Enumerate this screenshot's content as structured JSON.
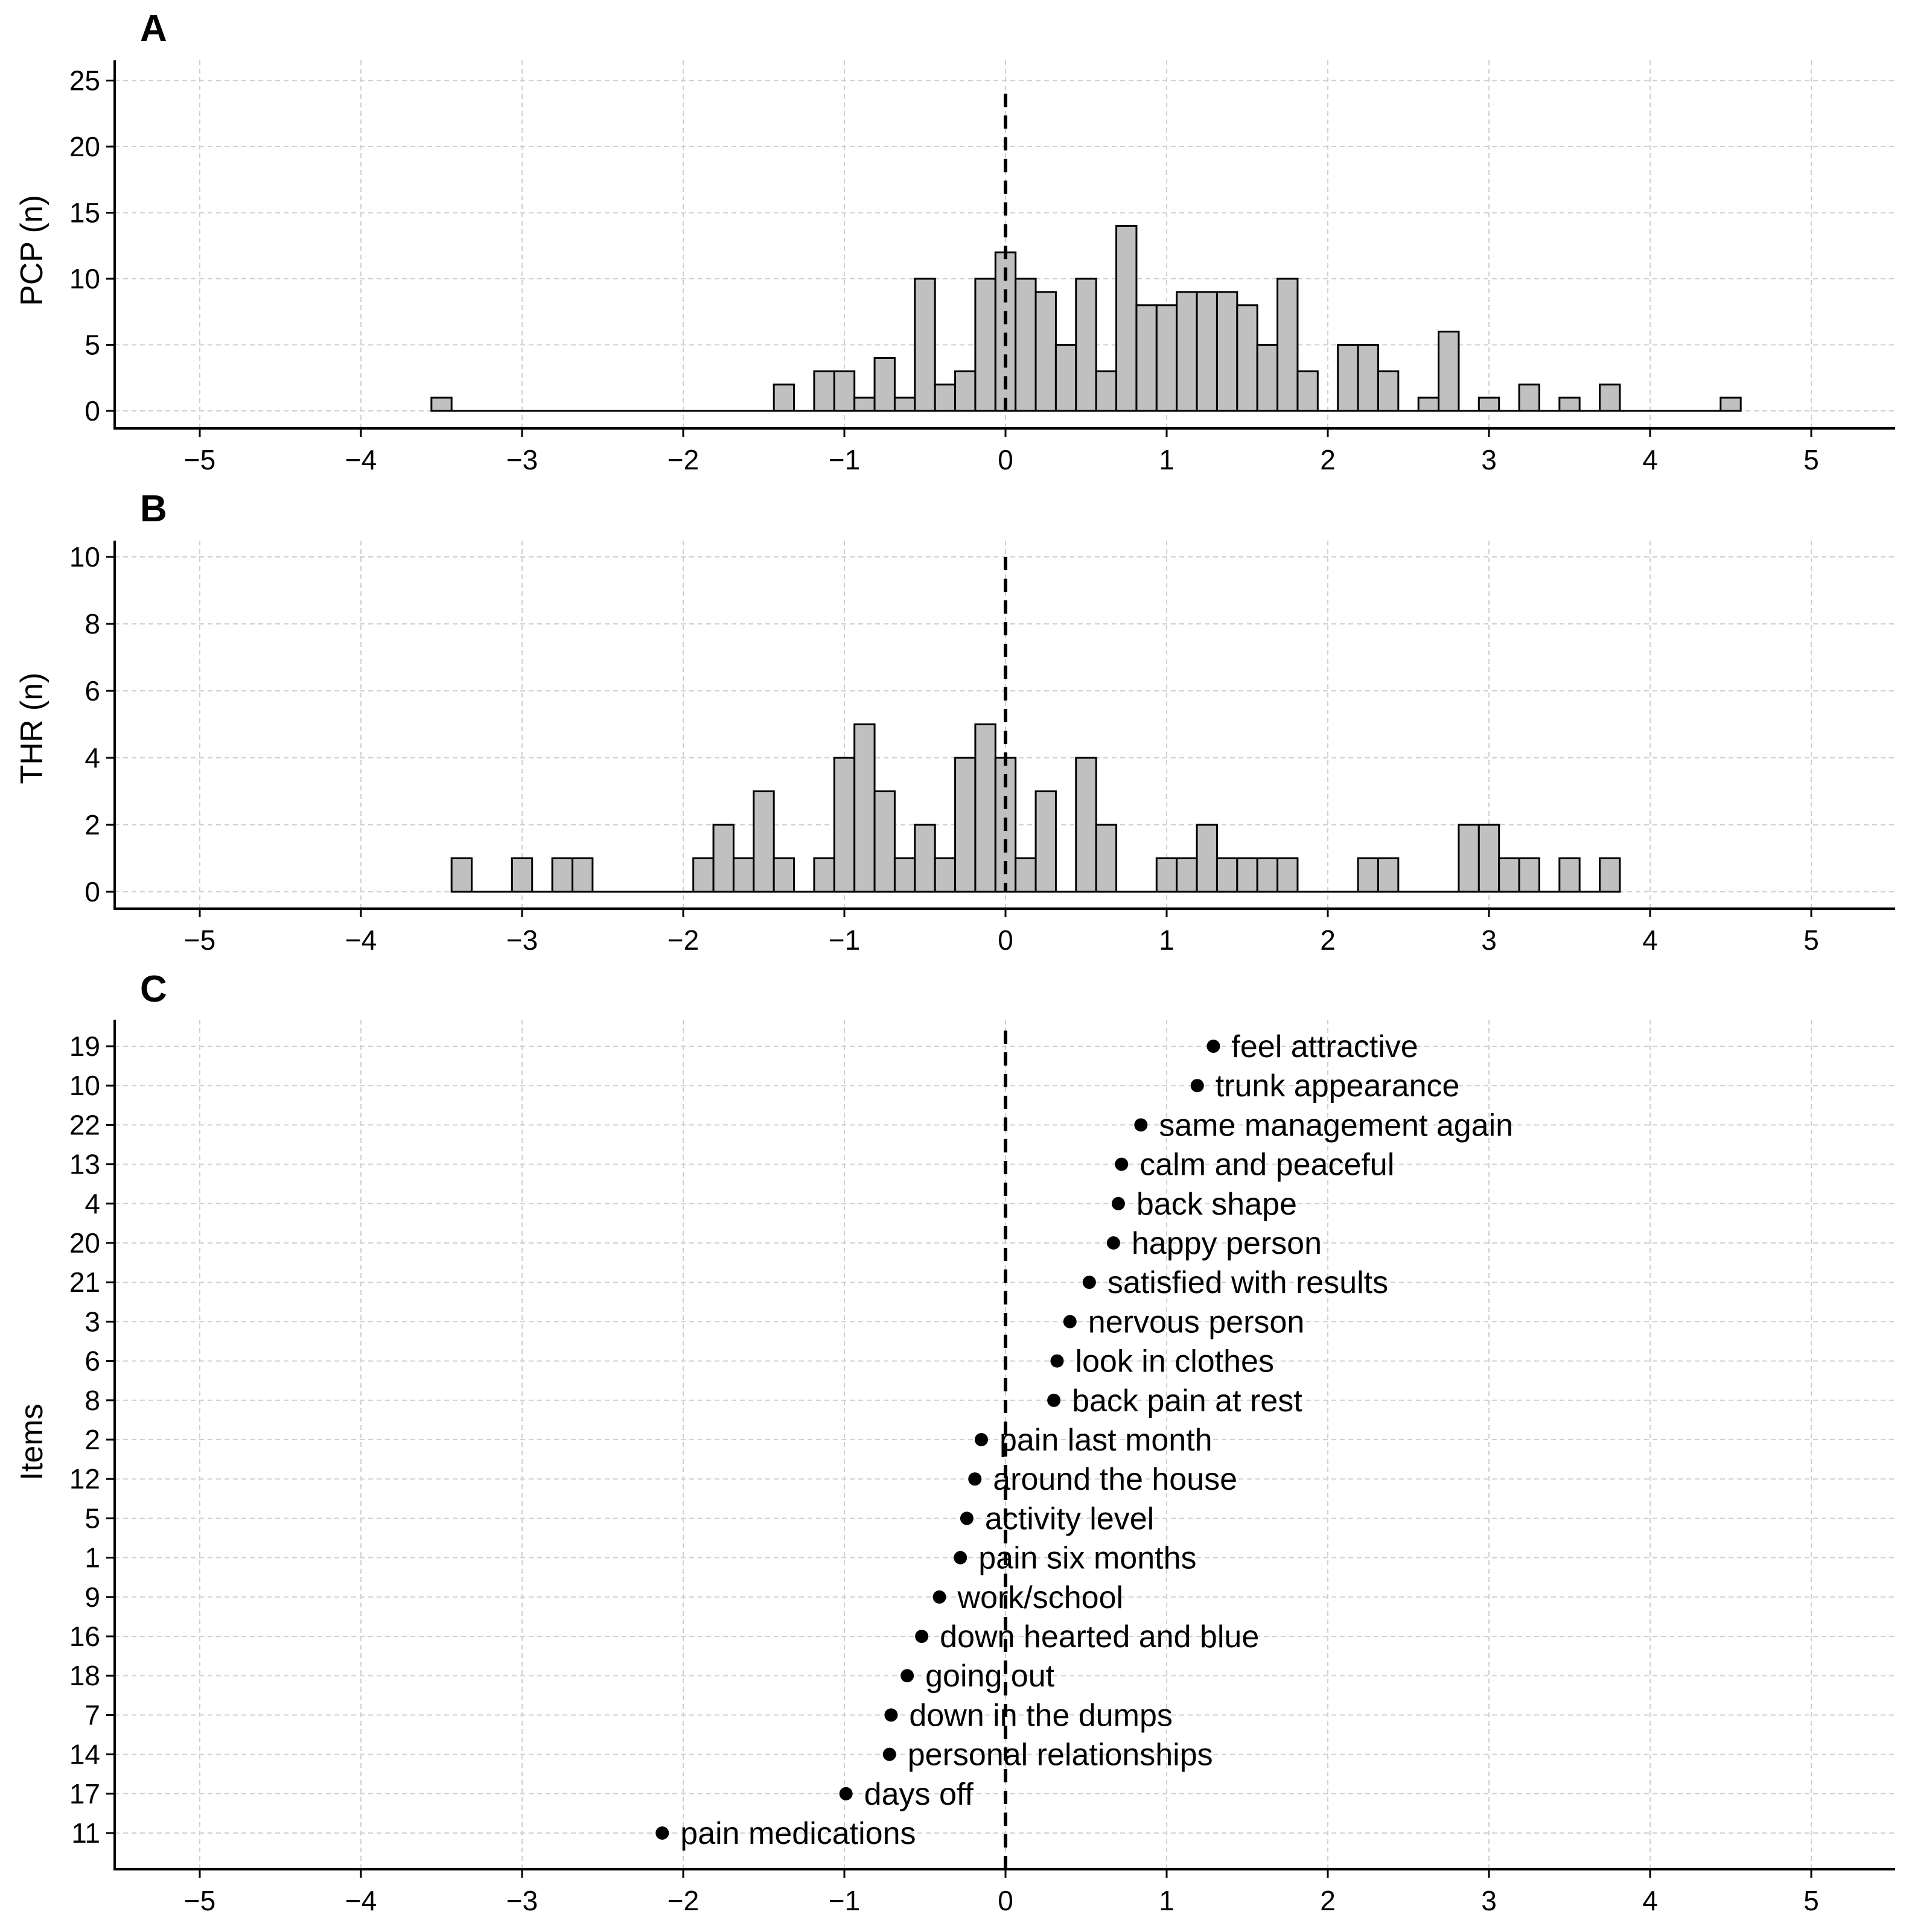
{
  "chart_data": [
    {
      "type": "bar",
      "panel": "A",
      "title": "",
      "ylabel": "PCP (n)",
      "xlabel": "",
      "xlim": [
        -5.5,
        5.5
      ],
      "ylim": [
        -2.5,
        26
      ],
      "xticks": [
        -5,
        -4,
        -3,
        -2,
        -1,
        0,
        1,
        2,
        3,
        4,
        5
      ],
      "xtick_labels": [
        "−5",
        "−4",
        "−3",
        "−2",
        "−1",
        "0",
        "1",
        "2",
        "3",
        "4",
        "5"
      ],
      "yticks": [
        0,
        5,
        10,
        15,
        20,
        25
      ],
      "ytick_labels": [
        "0",
        "5",
        "10",
        "15",
        "20",
        "25"
      ],
      "grid": true,
      "reference_line_x": 0,
      "reference_line_top": 24,
      "bin_width": 0.125,
      "bins": [
        {
          "x": -3.5,
          "count": 1
        },
        {
          "x": -1.375,
          "count": 2
        },
        {
          "x": -1.125,
          "count": 3
        },
        {
          "x": -1.0,
          "count": 3
        },
        {
          "x": -0.875,
          "count": 1
        },
        {
          "x": -0.75,
          "count": 4
        },
        {
          "x": -0.625,
          "count": 1
        },
        {
          "x": -0.5,
          "count": 10
        },
        {
          "x": -0.375,
          "count": 2
        },
        {
          "x": -0.25,
          "count": 3
        },
        {
          "x": -0.125,
          "count": 10
        },
        {
          "x": 0.0,
          "count": 12
        },
        {
          "x": 0.125,
          "count": 10
        },
        {
          "x": 0.25,
          "count": 9
        },
        {
          "x": 0.375,
          "count": 5
        },
        {
          "x": 0.5,
          "count": 10
        },
        {
          "x": 0.625,
          "count": 3
        },
        {
          "x": 0.75,
          "count": 14
        },
        {
          "x": 0.875,
          "count": 8
        },
        {
          "x": 1.0,
          "count": 8
        },
        {
          "x": 1.125,
          "count": 9
        },
        {
          "x": 1.25,
          "count": 9
        },
        {
          "x": 1.375,
          "count": 9
        },
        {
          "x": 1.5,
          "count": 8
        },
        {
          "x": 1.625,
          "count": 5
        },
        {
          "x": 1.75,
          "count": 10
        },
        {
          "x": 1.875,
          "count": 3
        },
        {
          "x": 2.125,
          "count": 5
        },
        {
          "x": 2.25,
          "count": 5
        },
        {
          "x": 2.375,
          "count": 3
        },
        {
          "x": 2.625,
          "count": 1
        },
        {
          "x": 2.75,
          "count": 6
        },
        {
          "x": 3.0,
          "count": 1
        },
        {
          "x": 3.25,
          "count": 2
        },
        {
          "x": 3.5,
          "count": 1
        },
        {
          "x": 3.75,
          "count": 2
        },
        {
          "x": 4.5,
          "count": 1
        }
      ]
    },
    {
      "type": "bar",
      "panel": "B",
      "title": "",
      "ylabel": "THR (n)",
      "xlabel": "",
      "xlim": [
        -5.5,
        5.5
      ],
      "ylim": [
        -1,
        10.5
      ],
      "xticks": [
        -5,
        -4,
        -3,
        -2,
        -1,
        0,
        1,
        2,
        3,
        4,
        5
      ],
      "xtick_labels": [
        "−5",
        "−4",
        "−3",
        "−2",
        "−1",
        "0",
        "1",
        "2",
        "3",
        "4",
        "5"
      ],
      "yticks": [
        0,
        2,
        4,
        6,
        8,
        10
      ],
      "ytick_labels": [
        "0",
        "2",
        "4",
        "6",
        "8",
        "10"
      ],
      "grid": true,
      "reference_line_x": 0,
      "reference_line_top": 10,
      "bin_width": 0.125,
      "bins": [
        {
          "x": -3.375,
          "count": 1
        },
        {
          "x": -3.0,
          "count": 1
        },
        {
          "x": -2.75,
          "count": 1
        },
        {
          "x": -2.625,
          "count": 1
        },
        {
          "x": -1.875,
          "count": 1
        },
        {
          "x": -1.75,
          "count": 2
        },
        {
          "x": -1.625,
          "count": 1
        },
        {
          "x": -1.5,
          "count": 3
        },
        {
          "x": -1.375,
          "count": 1
        },
        {
          "x": -1.125,
          "count": 1
        },
        {
          "x": -1.0,
          "count": 4
        },
        {
          "x": -0.875,
          "count": 5
        },
        {
          "x": -0.75,
          "count": 3
        },
        {
          "x": -0.625,
          "count": 1
        },
        {
          "x": -0.5,
          "count": 2
        },
        {
          "x": -0.375,
          "count": 1
        },
        {
          "x": -0.25,
          "count": 4
        },
        {
          "x": -0.125,
          "count": 5
        },
        {
          "x": 0.0,
          "count": 4
        },
        {
          "x": 0.125,
          "count": 1
        },
        {
          "x": 0.25,
          "count": 3
        },
        {
          "x": 0.375,
          "count": 0
        },
        {
          "x": 0.5,
          "count": 4
        },
        {
          "x": 0.625,
          "count": 2
        },
        {
          "x": 1.0,
          "count": 1
        },
        {
          "x": 1.125,
          "count": 1
        },
        {
          "x": 1.25,
          "count": 2
        },
        {
          "x": 1.375,
          "count": 1
        },
        {
          "x": 1.5,
          "count": 1
        },
        {
          "x": 1.625,
          "count": 1
        },
        {
          "x": 1.75,
          "count": 1
        },
        {
          "x": 2.25,
          "count": 1
        },
        {
          "x": 2.375,
          "count": 1
        },
        {
          "x": 2.875,
          "count": 2
        },
        {
          "x": 3.0,
          "count": 2
        },
        {
          "x": 3.125,
          "count": 1
        },
        {
          "x": 3.25,
          "count": 1
        },
        {
          "x": 3.5,
          "count": 1
        },
        {
          "x": 3.75,
          "count": 1
        }
      ]
    },
    {
      "type": "scatter",
      "panel": "C",
      "title": "",
      "ylabel": "Items",
      "xlabel": "",
      "xlim": [
        -5.5,
        5.5
      ],
      "xticks": [
        -5,
        -4,
        -3,
        -2,
        -1,
        0,
        1,
        2,
        3,
        4,
        5
      ],
      "xtick_labels": [
        "−5",
        "−4",
        "−3",
        "−2",
        "−1",
        "0",
        "1",
        "2",
        "3",
        "4",
        "5"
      ],
      "grid": true,
      "reference_line_x": 0,
      "items": [
        {
          "item": "19",
          "label": "feel attractive",
          "value": 1.29
        },
        {
          "item": "10",
          "label": "trunk appearance",
          "value": 1.19
        },
        {
          "item": "22",
          "label": "same management again",
          "value": 0.84
        },
        {
          "item": "13",
          "label": "calm and peaceful",
          "value": 0.72
        },
        {
          "item": "4",
          "label": "back shape",
          "value": 0.7
        },
        {
          "item": "20",
          "label": "happy person",
          "value": 0.67
        },
        {
          "item": "21",
          "label": "satisfied with results",
          "value": 0.52
        },
        {
          "item": "3",
          "label": "nervous person",
          "value": 0.4
        },
        {
          "item": "6",
          "label": "look in clothes",
          "value": 0.32
        },
        {
          "item": "8",
          "label": "back pain at rest",
          "value": 0.3
        },
        {
          "item": "2",
          "label": "pain last month",
          "value": -0.15
        },
        {
          "item": "12",
          "label": "around the house",
          "value": -0.19
        },
        {
          "item": "5",
          "label": "activity level",
          "value": -0.24
        },
        {
          "item": "1",
          "label": "pain six months",
          "value": -0.28
        },
        {
          "item": "9",
          "label": "work/school",
          "value": -0.41
        },
        {
          "item": "16",
          "label": "down hearted and blue",
          "value": -0.52
        },
        {
          "item": "18",
          "label": "going out",
          "value": -0.61
        },
        {
          "item": "7",
          "label": "down in the dumps",
          "value": -0.71
        },
        {
          "item": "14",
          "label": "personal relationships",
          "value": -0.72
        },
        {
          "item": "17",
          "label": "days off",
          "value": -0.99
        },
        {
          "item": "11",
          "label": "pain medications",
          "value": -2.13
        }
      ]
    }
  ],
  "colors": {
    "bar_fill": "#c0c0c0",
    "bar_stroke": "#000000",
    "grid": "#d0d0d0",
    "axis": "#000000",
    "point": "#000000"
  }
}
